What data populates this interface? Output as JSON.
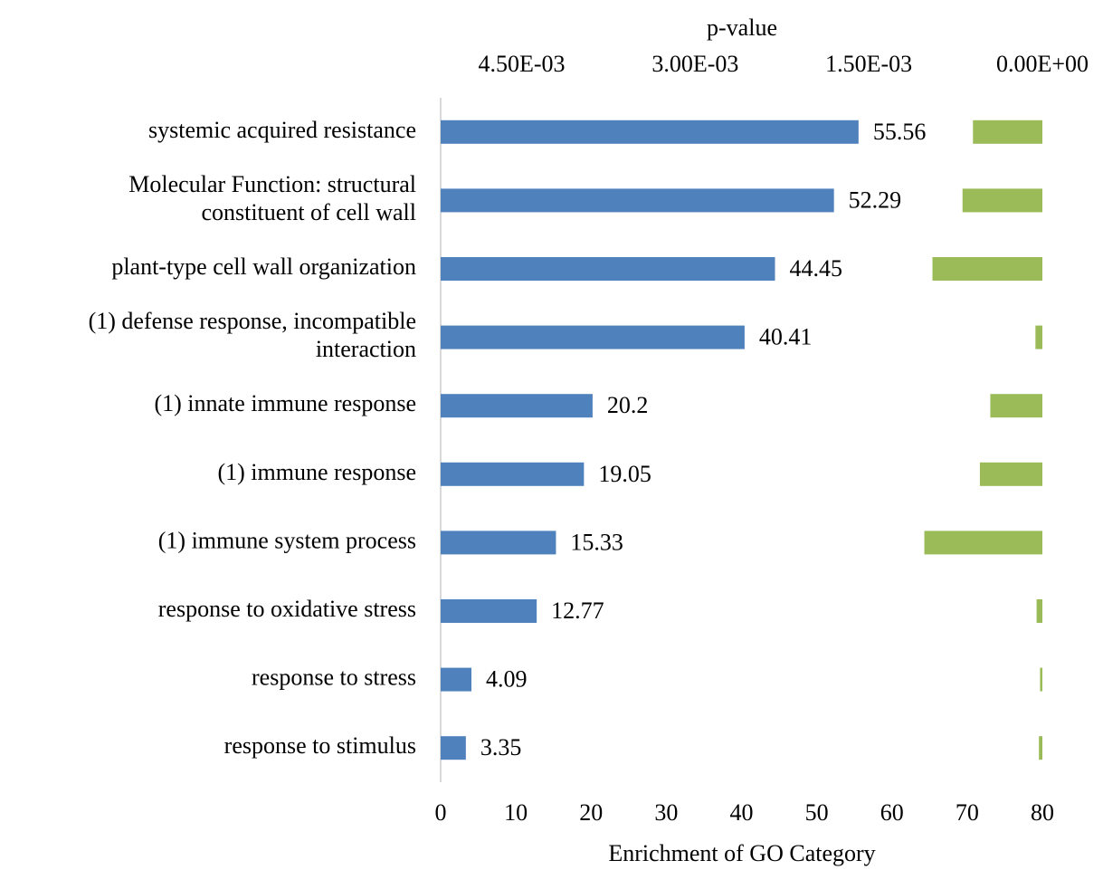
{
  "chart_data": {
    "type": "bar",
    "orientation": "horizontal",
    "xlabel": "Enrichment of GO Category",
    "x2label": "p-value",
    "categories": [
      "systemic acquired resistance",
      "Molecular Function: structural constituent of cell wall",
      "plant-type cell wall organization",
      "(1) defense response, incompatible interaction",
      "(1) innate immune response",
      "(1) immune response",
      "(1) immune system process",
      "response to oxidative stress",
      "response to stress",
      "response to stimulus"
    ],
    "series": [
      {
        "color": "#4f81bd",
        "values": [
          55.56,
          52.29,
          44.45,
          40.41,
          20.2,
          19.05,
          15.33,
          12.77,
          4.09,
          3.35
        ],
        "data_labels": true
      },
      {
        "color": "#9bbb59",
        "axis": "x2",
        "values": [
          0.0006,
          0.00069,
          0.00095,
          6e-05,
          0.00045,
          0.00054,
          0.00102,
          5e-05,
          2e-05,
          3e-05
        ]
      }
    ],
    "xlim": [
      0,
      80
    ],
    "xticks": [
      0,
      10,
      20,
      30,
      40,
      50,
      60,
      70,
      80
    ],
    "x2lim": [
      0.0052,
      0
    ],
    "x2ticks": [
      {
        "value": 0.0045,
        "label": "4.50E-03"
      },
      {
        "value": 0.003,
        "label": "3.00E-03"
      },
      {
        "value": 0.0015,
        "label": "1.50E-03"
      },
      {
        "value": 0,
        "label": "0.00E+00"
      }
    ]
  }
}
